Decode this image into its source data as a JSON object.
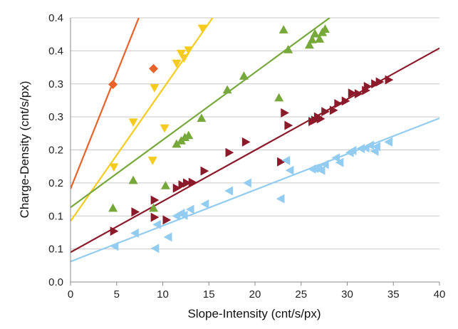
{
  "chart_data": {
    "type": "scatter",
    "title": "",
    "xlabel": "Slope-Intensity (cnt/s/px)",
    "ylabel": "Charge-Density  (cnt/s/px)",
    "xlim": [
      0,
      40
    ],
    "ylim": [
      0,
      0.4
    ],
    "x_ticks": [
      "0",
      "5",
      "10",
      "15",
      "20",
      "25",
      "30",
      "35",
      "40"
    ],
    "y_ticks": [
      "0.0",
      "0.1",
      "0.1",
      "0.2",
      "0.2",
      "0.3",
      "0.3",
      "0.4",
      "0.4"
    ],
    "grid": "horizontal",
    "legend": "none",
    "series": [
      {
        "marker": "diamond",
        "color": "#e8622a",
        "points": [
          [
            4.6,
            0.299
          ],
          [
            9.0,
            0.323
          ]
        ],
        "trendline": [
          [
            0,
            0.141
          ],
          [
            7.4,
            0.4
          ]
        ]
      },
      {
        "marker": "triangle-down",
        "color": "#f5cc1e",
        "points": [
          [
            4.7,
            0.174
          ],
          [
            6.8,
            0.242
          ],
          [
            8.9,
            0.184
          ],
          [
            9.1,
            0.294
          ],
          [
            10.2,
            0.233
          ],
          [
            11.5,
            0.331
          ],
          [
            12.0,
            0.346
          ],
          [
            12.3,
            0.339
          ],
          [
            12.8,
            0.351
          ],
          [
            14.3,
            0.384
          ]
        ],
        "trendline": [
          [
            0,
            0.092
          ],
          [
            15.4,
            0.4
          ]
        ]
      },
      {
        "marker": "triangle-up",
        "color": "#76a83a",
        "points": [
          [
            4.6,
            0.112
          ],
          [
            6.8,
            0.154
          ],
          [
            9.0,
            0.112
          ],
          [
            10.3,
            0.146
          ],
          [
            11.5,
            0.209
          ],
          [
            12.0,
            0.214
          ],
          [
            12.4,
            0.219
          ],
          [
            12.8,
            0.222
          ],
          [
            14.2,
            0.248
          ],
          [
            17.0,
            0.291
          ],
          [
            18.8,
            0.312
          ],
          [
            22.6,
            0.279
          ],
          [
            23.1,
            0.382
          ],
          [
            23.6,
            0.352
          ],
          [
            25.9,
            0.359
          ],
          [
            26.2,
            0.367
          ],
          [
            26.5,
            0.376
          ],
          [
            27.0,
            0.368
          ],
          [
            27.6,
            0.383
          ],
          [
            27.3,
            0.378
          ]
        ],
        "trendline": [
          [
            0,
            0.113
          ],
          [
            28.1,
            0.4
          ]
        ]
      },
      {
        "marker": "triangle-right",
        "color": "#8b1a2a",
        "points": [
          [
            4.7,
            0.077
          ],
          [
            7.0,
            0.106
          ],
          [
            9.1,
            0.124
          ],
          [
            9.1,
            0.098
          ],
          [
            10.4,
            0.094
          ],
          [
            11.5,
            0.142
          ],
          [
            12.1,
            0.147
          ],
          [
            12.6,
            0.15
          ],
          [
            13.2,
            0.151
          ],
          [
            14.5,
            0.168
          ],
          [
            17.2,
            0.196
          ],
          [
            19.0,
            0.212
          ],
          [
            22.8,
            0.182
          ],
          [
            23.2,
            0.256
          ],
          [
            23.6,
            0.237
          ],
          [
            26.2,
            0.243
          ],
          [
            26.5,
            0.245
          ],
          [
            26.8,
            0.25
          ],
          [
            27.1,
            0.247
          ],
          [
            27.6,
            0.258
          ],
          [
            28.5,
            0.26
          ],
          [
            29.0,
            0.27
          ],
          [
            29.8,
            0.274
          ],
          [
            30.5,
            0.286
          ],
          [
            31.2,
            0.285
          ],
          [
            32.0,
            0.29
          ],
          [
            32.2,
            0.296
          ],
          [
            33.0,
            0.3
          ],
          [
            33.5,
            0.303
          ],
          [
            34.5,
            0.306
          ]
        ],
        "trendline": [
          [
            0,
            0.045
          ],
          [
            40,
            0.354
          ]
        ]
      },
      {
        "marker": "triangle-left",
        "color": "#92ccf0",
        "points": [
          [
            4.8,
            0.054
          ],
          [
            7.0,
            0.074
          ],
          [
            9.2,
            0.051
          ],
          [
            9.4,
            0.087
          ],
          [
            10.6,
            0.068
          ],
          [
            11.5,
            0.1
          ],
          [
            12.0,
            0.104
          ],
          [
            12.3,
            0.101
          ],
          [
            13.0,
            0.11
          ],
          [
            14.6,
            0.118
          ],
          [
            17.2,
            0.138
          ],
          [
            19.2,
            0.15
          ],
          [
            22.8,
            0.126
          ],
          [
            23.4,
            0.184
          ],
          [
            23.8,
            0.169
          ],
          [
            26.2,
            0.171
          ],
          [
            26.5,
            0.172
          ],
          [
            26.9,
            0.173
          ],
          [
            27.2,
            0.169
          ],
          [
            27.6,
            0.178
          ],
          [
            28.8,
            0.188
          ],
          [
            29.2,
            0.181
          ],
          [
            30.3,
            0.196
          ],
          [
            30.6,
            0.199
          ],
          [
            31.5,
            0.202
          ],
          [
            32.0,
            0.203
          ],
          [
            32.5,
            0.207
          ],
          [
            33.0,
            0.198
          ],
          [
            33.2,
            0.205
          ],
          [
            34.5,
            0.212
          ]
        ],
        "trendline": [
          [
            0,
            0.031
          ],
          [
            40,
            0.248
          ]
        ]
      }
    ]
  }
}
